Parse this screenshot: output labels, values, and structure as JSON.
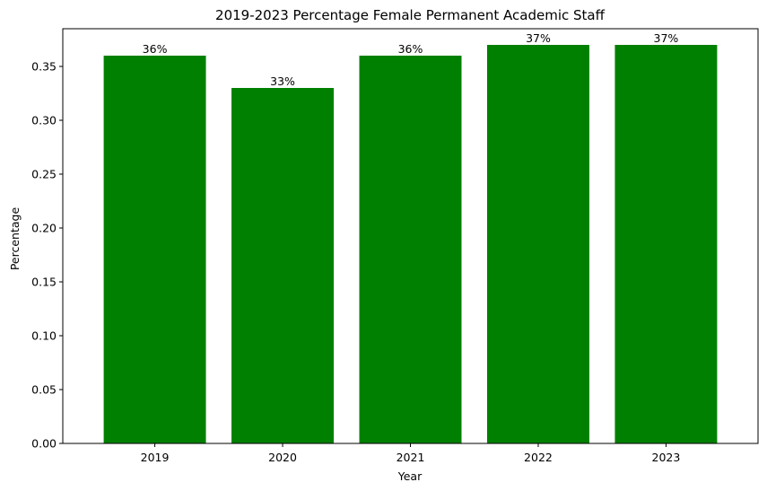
{
  "chart_data": {
    "type": "bar",
    "title": "2019-2023 Percentage Female Permanent Academic Staff",
    "xlabel": "Year",
    "ylabel": "Percentage",
    "categories": [
      "2019",
      "2020",
      "2021",
      "2022",
      "2023"
    ],
    "values": [
      0.36,
      0.33,
      0.36,
      0.37,
      0.37
    ],
    "data_labels": [
      "36%",
      "33%",
      "36%",
      "37%",
      "37%"
    ],
    "ylim": [
      0,
      0.385
    ],
    "yticks": [
      0.0,
      0.05,
      0.1,
      0.15,
      0.2,
      0.25,
      0.3,
      0.35
    ],
    "ytick_labels": [
      "0.00",
      "0.05",
      "0.10",
      "0.15",
      "0.20",
      "0.25",
      "0.30",
      "0.35"
    ],
    "bar_color": "#008000",
    "grid": false,
    "legend": "none"
  }
}
